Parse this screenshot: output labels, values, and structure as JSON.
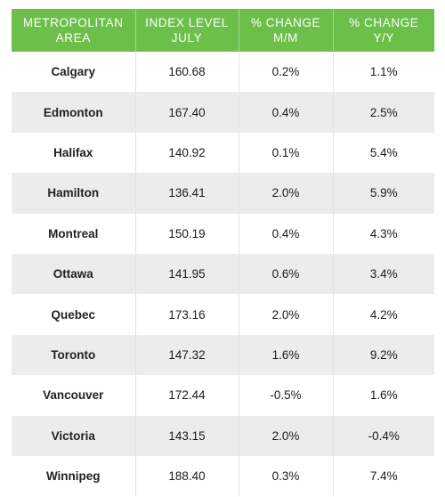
{
  "colors": {
    "header_bg": "#6cc04a",
    "header_text": "#ffffff",
    "stripe_bg": "#ececec"
  },
  "chart_data": {
    "type": "table",
    "columns": [
      {
        "line1": "METROPOLITAN",
        "line2": "AREA"
      },
      {
        "line1": "INDEX LEVEL",
        "line2": "JULY"
      },
      {
        "line1": "% CHANGE",
        "line2": "M/M"
      },
      {
        "line1": "% CHANGE",
        "line2": "Y/Y"
      }
    ],
    "rows": [
      {
        "area": "Calgary",
        "index": "160.68",
        "mm": "0.2%",
        "yy": "1.1%"
      },
      {
        "area": "Edmonton",
        "index": "167.40",
        "mm": "0.4%",
        "yy": "2.5%"
      },
      {
        "area": "Halifax",
        "index": "140.92",
        "mm": "0.1%",
        "yy": "5.4%"
      },
      {
        "area": "Hamilton",
        "index": "136.41",
        "mm": "2.0%",
        "yy": "5.9%"
      },
      {
        "area": "Montreal",
        "index": "150.19",
        "mm": "0.4%",
        "yy": "4.3%"
      },
      {
        "area": "Ottawa",
        "index": "141.95",
        "mm": "0.6%",
        "yy": "3.4%"
      },
      {
        "area": "Quebec",
        "index": "173.16",
        "mm": "2.0%",
        "yy": "4.2%"
      },
      {
        "area": "Toronto",
        "index": "147.32",
        "mm": "1.6%",
        "yy": "9.2%"
      },
      {
        "area": "Vancouver",
        "index": "172.44",
        "mm": "-0.5%",
        "yy": "1.6%"
      },
      {
        "area": "Victoria",
        "index": "143.15",
        "mm": "2.0%",
        "yy": "-0.4%"
      },
      {
        "area": "Winnipeg",
        "index": "188.40",
        "mm": "0.3%",
        "yy": "7.4%"
      }
    ]
  }
}
